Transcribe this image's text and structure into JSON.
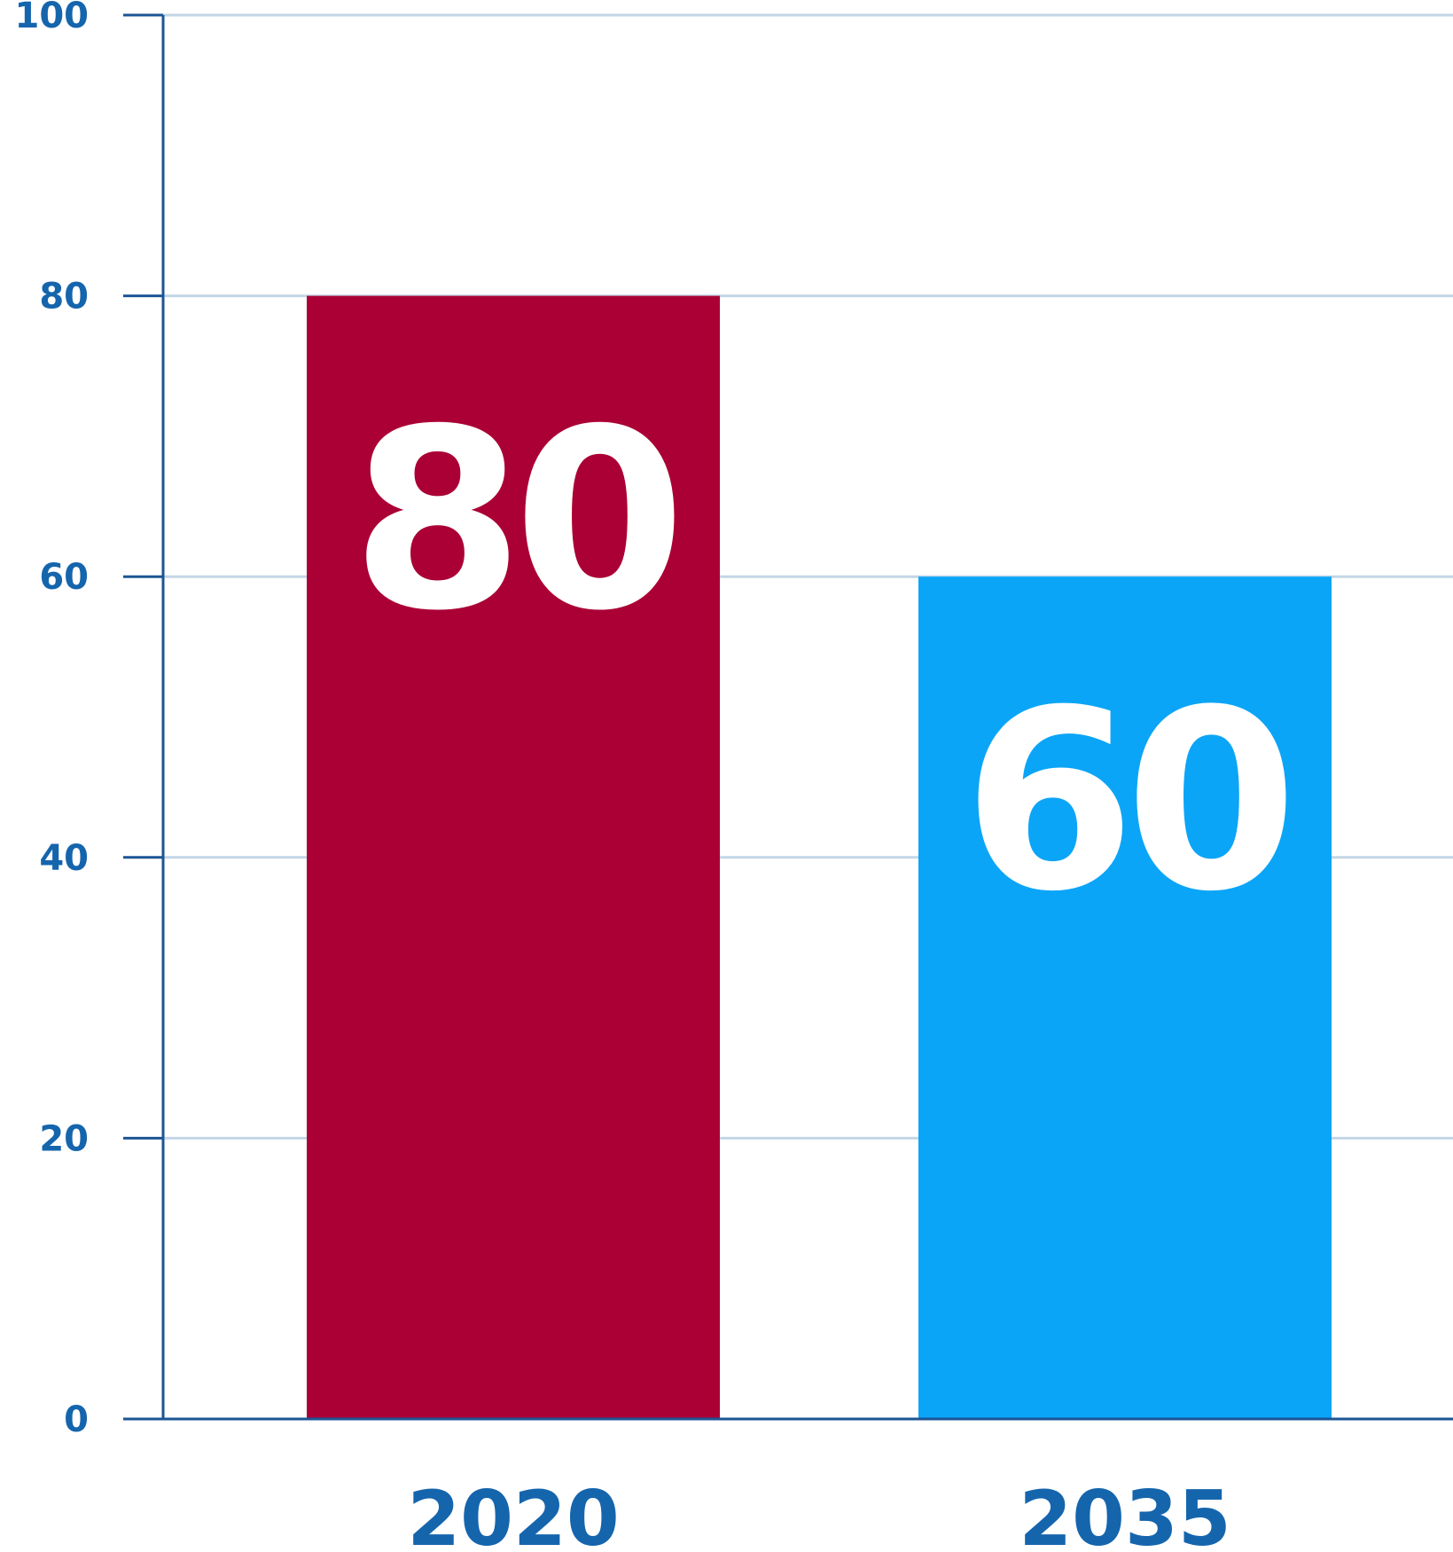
{
  "chart_data": {
    "type": "bar",
    "title": "",
    "xlabel": "",
    "ylabel": "",
    "categories": [
      "2020",
      "2035"
    ],
    "values": [
      80,
      60
    ],
    "data_labels": [
      "80",
      "60"
    ],
    "bar_colors": [
      "#ab0035",
      "#0ba5f7"
    ],
    "ylim": [
      0,
      100
    ],
    "yticks": [
      0,
      20,
      40,
      60,
      80,
      100
    ],
    "ytick_labels": [
      "0",
      "20",
      "40",
      "60",
      "80",
      "100"
    ],
    "grid": true,
    "legend": "none",
    "colors": {
      "axis": "#1b5595",
      "tick_text": "#1565ad",
      "category_text": "#1565ad",
      "gridline": "#c3d6e6",
      "data_label_text": "#ffffff"
    }
  }
}
